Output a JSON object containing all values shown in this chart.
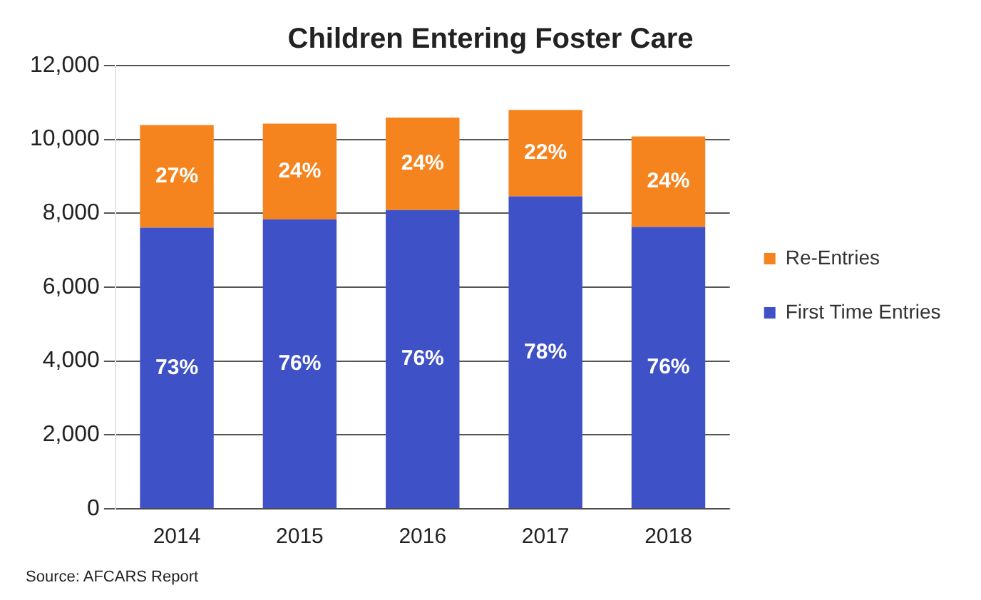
{
  "chart_data": {
    "type": "bar",
    "title": "Children Entering Foster Care",
    "categories": [
      "2014",
      "2015",
      "2016",
      "2017",
      "2018"
    ],
    "stacked": true,
    "series": [
      {
        "name": "First Time Entries",
        "color": "#3f51c6",
        "values": [
          7610,
          7840,
          8090,
          8460,
          7630
        ]
      },
      {
        "name": "Re-Entries",
        "color": "#f5841f",
        "values": [
          2780,
          2590,
          2500,
          2340,
          2450
        ]
      }
    ],
    "ylim": [
      0,
      12000
    ],
    "yticks": [
      {
        "value": 0,
        "label": "0"
      },
      {
        "value": 2000,
        "label": "2,000"
      },
      {
        "value": 4000,
        "label": "4,000"
      },
      {
        "value": 6000,
        "label": "6,000"
      },
      {
        "value": 8000,
        "label": "8,000"
      },
      {
        "value": 10000,
        "label": "10,000"
      },
      {
        "value": 12000,
        "label": "12,000"
      }
    ],
    "grid": "y",
    "legend": "right",
    "annotations": [
      "73%",
      "76%",
      "76%",
      "78%",
      "76%",
      "27%",
      "24%",
      "24%",
      "22%",
      "24%",
      "Source: AFCARS Report"
    ]
  }
}
